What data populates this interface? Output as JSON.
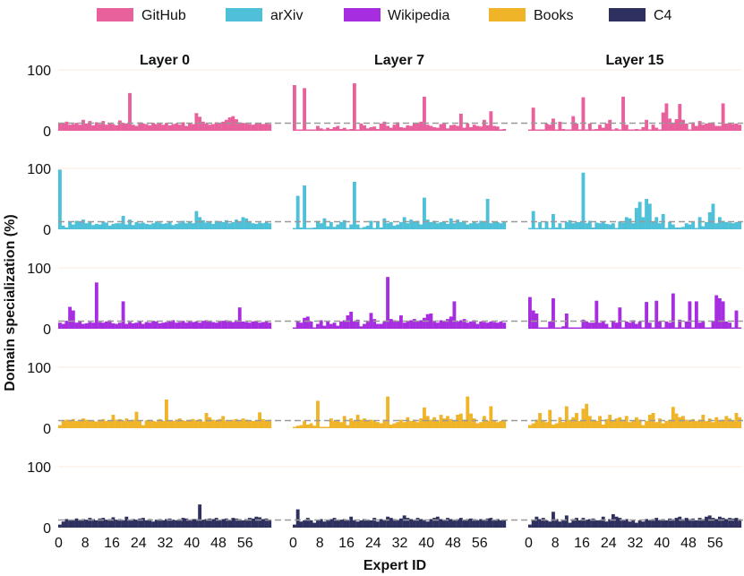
{
  "chart_data": {
    "type": "bar",
    "xlabel": "Expert ID",
    "ylabel": "Domain specialization (%)",
    "ylim": [
      0,
      100
    ],
    "yticks": [
      "0",
      "100"
    ],
    "xticks": [
      "0",
      "8",
      "16",
      "24",
      "32",
      "40",
      "48",
      "56"
    ],
    "baseline": 12.5,
    "panels": [
      "Layer 0",
      "Layer 7",
      "Layer 15"
    ],
    "domains": [
      {
        "name": "GitHub",
        "color": "#e8609c"
      },
      {
        "name": "arXiv",
        "color": "#4ec0d8"
      },
      {
        "name": "Wikipedia",
        "color": "#a72ee0"
      },
      {
        "name": "Books",
        "color": "#f0b429"
      },
      {
        "name": "C4",
        "color": "#2e3060"
      }
    ],
    "series": [
      [
        [
          13,
          12,
          15,
          10,
          11,
          13,
          10,
          18,
          12,
          16,
          9,
          14,
          11,
          16,
          10,
          12,
          11,
          9,
          17,
          13,
          12,
          62,
          10,
          8,
          14,
          12,
          11,
          9,
          13,
          11,
          12,
          10,
          13,
          9,
          11,
          12,
          10,
          14,
          8,
          12,
          11,
          29,
          23,
          15,
          12,
          10,
          11,
          14,
          13,
          15,
          18,
          22,
          24,
          19,
          14,
          13,
          12,
          11,
          10,
          12,
          13,
          11,
          12,
          11
        ],
        [
          75,
          2,
          1,
          70,
          2,
          1,
          2,
          8,
          4,
          2,
          5,
          3,
          6,
          8,
          3,
          5,
          2,
          3,
          78,
          2,
          12,
          9,
          4,
          6,
          7,
          3,
          12,
          15,
          8,
          5,
          10,
          14,
          6,
          5,
          9,
          8,
          12,
          12,
          15,
          56,
          10,
          8,
          6,
          5,
          11,
          13,
          4,
          9,
          10,
          8,
          28,
          5,
          12,
          6,
          10,
          8,
          7,
          18,
          9,
          32,
          8,
          7,
          2,
          3
        ],
        [
          2,
          38,
          1,
          2,
          1,
          12,
          10,
          20,
          1,
          15,
          3,
          1,
          1,
          24,
          12,
          2,
          55,
          1,
          12,
          1,
          3,
          10,
          5,
          12,
          18,
          2,
          4,
          1,
          56,
          10,
          2,
          2,
          3,
          1,
          6,
          18,
          2,
          10,
          5,
          2,
          30,
          45,
          20,
          12,
          19,
          44,
          18,
          12,
          1,
          14,
          8,
          16,
          10,
          12,
          12,
          14,
          8,
          8,
          45,
          12,
          13,
          11,
          12,
          10
        ]
      ],
      [
        [
          98,
          6,
          3,
          12,
          8,
          14,
          12,
          16,
          10,
          12,
          7,
          9,
          8,
          13,
          11,
          6,
          9,
          10,
          10,
          22,
          8,
          16,
          7,
          12,
          10,
          11,
          9,
          8,
          10,
          13,
          11,
          9,
          10,
          12,
          7,
          9,
          11,
          14,
          10,
          12,
          10,
          30,
          20,
          15,
          11,
          12,
          9,
          14,
          13,
          12,
          15,
          10,
          12,
          16,
          13,
          20,
          18,
          12,
          10,
          9,
          11,
          10,
          12,
          10
        ],
        [
          2,
          55,
          3,
          72,
          2,
          1,
          3,
          14,
          10,
          18,
          5,
          12,
          4,
          8,
          12,
          15,
          2,
          8,
          78,
          8,
          1,
          4,
          6,
          14,
          2,
          12,
          3,
          18,
          10,
          12,
          6,
          8,
          12,
          20,
          10,
          16,
          12,
          14,
          8,
          52,
          16,
          12,
          14,
          10,
          12,
          12,
          9,
          18,
          10,
          16,
          12,
          14,
          8,
          10,
          12,
          10,
          14,
          12,
          50,
          10,
          13,
          12,
          10,
          12
        ],
        [
          2,
          30,
          1,
          12,
          1,
          13,
          2,
          25,
          3,
          10,
          1,
          12,
          15,
          10,
          12,
          12,
          93,
          10,
          14,
          3,
          11,
          10,
          12,
          9,
          8,
          10,
          1,
          13,
          11,
          20,
          18,
          10,
          35,
          45,
          20,
          50,
          42,
          12,
          20,
          10,
          25,
          2,
          12,
          8,
          3,
          3,
          4,
          10,
          8,
          12,
          2,
          20,
          5,
          12,
          28,
          42,
          10,
          20,
          14,
          12,
          11,
          10,
          12,
          12
        ]
      ],
      [
        [
          10,
          8,
          13,
          36,
          30,
          10,
          12,
          8,
          9,
          11,
          10,
          76,
          11,
          10,
          12,
          14,
          9,
          8,
          10,
          45,
          8,
          11,
          9,
          10,
          12,
          8,
          11,
          10,
          13,
          12,
          9,
          10,
          11,
          12,
          14,
          10,
          11,
          13,
          10,
          12,
          11,
          12,
          10,
          13,
          14,
          12,
          11,
          10,
          12,
          13,
          14,
          12,
          11,
          14,
          35,
          12,
          11,
          10,
          12,
          13,
          10,
          11,
          12,
          10
        ],
        [
          2,
          12,
          10,
          18,
          20,
          12,
          2,
          8,
          14,
          5,
          12,
          8,
          10,
          5,
          12,
          14,
          22,
          28,
          12,
          15,
          4,
          8,
          12,
          26,
          16,
          8,
          8,
          12,
          85,
          16,
          14,
          12,
          22,
          10,
          12,
          14,
          16,
          12,
          14,
          18,
          24,
          25,
          12,
          10,
          14,
          12,
          16,
          20,
          45,
          12,
          14,
          16,
          10,
          12,
          14,
          8,
          12,
          11,
          10,
          12,
          11,
          10,
          12,
          10
        ],
        [
          52,
          30,
          25,
          2,
          2,
          1,
          12,
          50,
          2,
          2,
          4,
          25,
          2,
          2,
          2,
          2,
          15,
          12,
          10,
          10,
          46,
          10,
          12,
          8,
          2,
          12,
          10,
          35,
          2,
          12,
          10,
          14,
          8,
          12,
          2,
          44,
          10,
          2,
          46,
          12,
          2,
          12,
          10,
          58,
          2,
          15,
          2,
          12,
          45,
          2,
          45,
          10,
          12,
          2,
          2,
          12,
          55,
          50,
          45,
          12,
          10,
          2,
          30,
          2
        ]
      ],
      [
        [
          5,
          12,
          14,
          13,
          15,
          12,
          14,
          16,
          14,
          13,
          12,
          11,
          14,
          15,
          12,
          13,
          22,
          14,
          15,
          12,
          16,
          13,
          14,
          27,
          12,
          5,
          13,
          14,
          12,
          11,
          15,
          12,
          47,
          13,
          12,
          14,
          16,
          13,
          12,
          14,
          15,
          13,
          15,
          11,
          25,
          18,
          14,
          13,
          15,
          20,
          12,
          12,
          14,
          15,
          13,
          16,
          14,
          12,
          12,
          13,
          26,
          15,
          12,
          14
        ],
        [
          2,
          4,
          5,
          12,
          6,
          8,
          4,
          45,
          2,
          1,
          2,
          16,
          12,
          14,
          10,
          20,
          5,
          16,
          12,
          22,
          14,
          16,
          12,
          14,
          12,
          10,
          8,
          14,
          52,
          6,
          8,
          10,
          14,
          10,
          18,
          12,
          14,
          10,
          16,
          34,
          20,
          14,
          18,
          12,
          22,
          16,
          20,
          15,
          12,
          22,
          24,
          14,
          52,
          24,
          16,
          8,
          10,
          20,
          12,
          36,
          12,
          10,
          12,
          14
        ],
        [
          5,
          8,
          14,
          25,
          12,
          10,
          30,
          6,
          8,
          18,
          10,
          36,
          14,
          18,
          25,
          12,
          32,
          40,
          20,
          14,
          12,
          20,
          6,
          15,
          22,
          12,
          16,
          18,
          14,
          20,
          10,
          12,
          18,
          14,
          5,
          12,
          22,
          25,
          10,
          16,
          8,
          12,
          14,
          35,
          24,
          18,
          20,
          14,
          12,
          15,
          12,
          14,
          22,
          12,
          16,
          10,
          18,
          12,
          14,
          20,
          16,
          12,
          25,
          18
        ]
      ],
      [
        [
          5,
          10,
          14,
          13,
          12,
          15,
          13,
          14,
          13,
          16,
          14,
          12,
          15,
          16,
          13,
          14,
          17,
          13,
          14,
          12,
          18,
          12,
          14,
          13,
          15,
          16,
          12,
          14,
          10,
          13,
          14,
          12,
          14,
          15,
          13,
          12,
          14,
          16,
          15,
          13,
          14,
          14,
          38,
          13,
          14,
          15,
          14,
          16,
          12,
          14,
          15,
          13,
          16,
          15,
          14,
          12,
          14,
          16,
          15,
          18,
          17,
          14,
          15,
          13
        ],
        [
          5,
          30,
          10,
          12,
          16,
          12,
          8,
          12,
          14,
          10,
          12,
          14,
          16,
          12,
          13,
          14,
          12,
          18,
          12,
          10,
          12,
          14,
          13,
          12,
          16,
          10,
          14,
          12,
          18,
          16,
          14,
          12,
          15,
          20,
          16,
          14,
          12,
          16,
          14,
          12,
          10,
          14,
          16,
          18,
          14,
          12,
          16,
          14,
          13,
          14,
          16,
          12,
          14,
          15,
          14,
          12,
          14,
          12,
          15,
          16,
          12,
          14,
          12,
          13
        ],
        [
          5,
          12,
          18,
          14,
          16,
          12,
          10,
          26,
          14,
          10,
          12,
          20,
          8,
          14,
          16,
          12,
          16,
          13,
          14,
          15,
          12,
          12,
          18,
          10,
          14,
          22,
          18,
          16,
          12,
          14,
          10,
          12,
          8,
          12,
          10,
          14,
          12,
          14,
          16,
          12,
          14,
          12,
          15,
          14,
          16,
          18,
          14,
          16,
          14,
          15,
          12,
          16,
          14,
          18,
          20,
          16,
          14,
          18,
          16,
          14,
          16,
          15,
          16,
          14
        ]
      ]
    ]
  }
}
